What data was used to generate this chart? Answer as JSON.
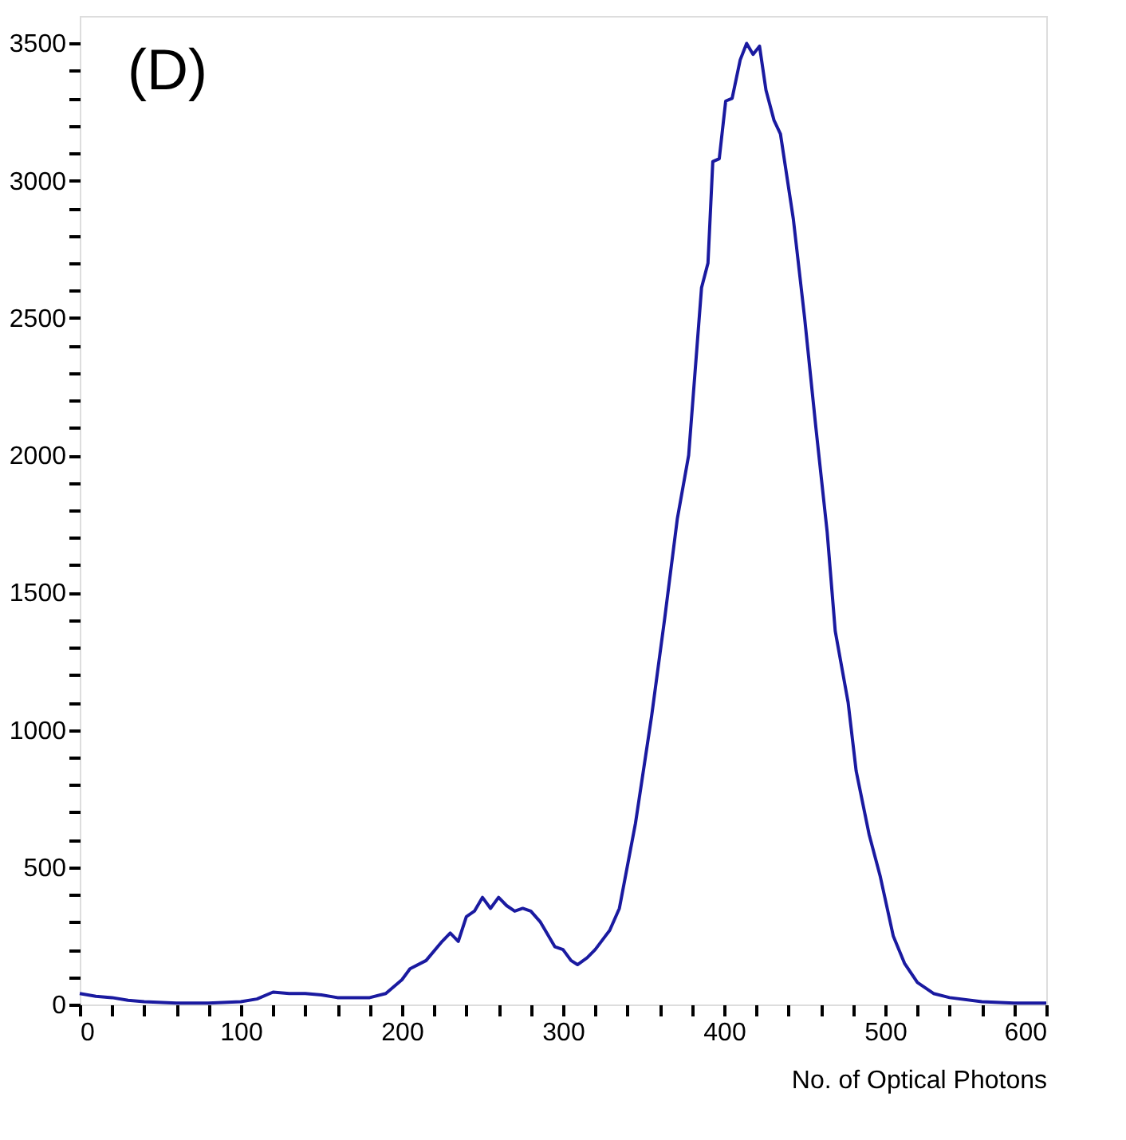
{
  "chart_data": {
    "type": "line",
    "xlabel": "No. of Optical Photons",
    "annotations": [
      "(D)"
    ],
    "xlim": [
      0,
      600
    ],
    "ylim": [
      0,
      3600
    ],
    "xticks": [
      0,
      {
        "value": 20,
        "label": null
      },
      {
        "value": 40,
        "label": null
      },
      {
        "value": 60,
        "label": null
      },
      {
        "value": 80,
        "label": null
      },
      100,
      {
        "value": 120,
        "label": null
      },
      {
        "value": 140,
        "label": null
      },
      {
        "value": 160,
        "label": null
      },
      {
        "value": 180,
        "label": null
      },
      200,
      {
        "value": 220,
        "label": null
      },
      {
        "value": 240,
        "label": null
      },
      {
        "value": 260,
        "label": null
      },
      {
        "value": 280,
        "label": null
      },
      300,
      {
        "value": 320,
        "label": null
      },
      {
        "value": 340,
        "label": null
      },
      {
        "value": 360,
        "label": null
      },
      {
        "value": 380,
        "label": null
      },
      400,
      {
        "value": 420,
        "label": null
      },
      {
        "value": 440,
        "label": null
      },
      {
        "value": 460,
        "label": null
      },
      {
        "value": 480,
        "label": null
      },
      500,
      {
        "value": 520,
        "label": null
      },
      {
        "value": 540,
        "label": null
      },
      {
        "value": 560,
        "label": null
      },
      {
        "value": 580,
        "label": null
      },
      600
    ],
    "yticks": [
      0,
      {
        "value": 100,
        "label": null
      },
      {
        "value": 200,
        "label": null
      },
      {
        "value": 300,
        "label": null
      },
      {
        "value": 400,
        "label": null
      },
      500,
      {
        "value": 600,
        "label": null
      },
      {
        "value": 700,
        "label": null
      },
      {
        "value": 800,
        "label": null
      },
      {
        "value": 900,
        "label": null
      },
      1000,
      {
        "value": 1100,
        "label": null
      },
      {
        "value": 1200,
        "label": null
      },
      {
        "value": 1300,
        "label": null
      },
      {
        "value": 1400,
        "label": null
      },
      1500,
      {
        "value": 1600,
        "label": null
      },
      {
        "value": 1700,
        "label": null
      },
      {
        "value": 1800,
        "label": null
      },
      {
        "value": 1900,
        "label": null
      },
      2000,
      {
        "value": 2100,
        "label": null
      },
      {
        "value": 2200,
        "label": null
      },
      {
        "value": 2300,
        "label": null
      },
      {
        "value": 2400,
        "label": null
      },
      2500,
      {
        "value": 2600,
        "label": null
      },
      {
        "value": 2700,
        "label": null
      },
      {
        "value": 2800,
        "label": null
      },
      {
        "value": 2900,
        "label": null
      },
      3000,
      {
        "value": 3100,
        "label": null
      },
      {
        "value": 3200,
        "label": null
      },
      {
        "value": 3300,
        "label": null
      },
      {
        "value": 3400,
        "label": null
      },
      3500
    ],
    "grid": false,
    "marker": "none",
    "line_style": "solid",
    "series": [
      {
        "color": "#1a1aa0",
        "x": [
          0,
          10,
          20,
          30,
          40,
          60,
          80,
          100,
          110,
          120,
          130,
          140,
          150,
          160,
          180,
          190,
          200,
          205,
          215,
          225,
          230,
          235,
          240,
          245,
          250,
          255,
          260,
          265,
          270,
          275,
          280,
          286,
          290,
          295,
          300,
          305,
          309,
          315,
          320,
          329,
          335,
          345,
          355,
          363,
          371,
          378,
          386,
          390,
          393,
          397,
          401,
          405,
          410,
          414,
          418,
          422,
          426,
          431,
          435,
          443,
          450,
          457,
          464,
          469,
          477,
          482,
          490,
          497,
          505,
          512,
          520,
          530,
          540,
          560,
          580,
          600
        ],
        "values": [
          40,
          30,
          25,
          15,
          10,
          5,
          5,
          10,
          20,
          45,
          40,
          40,
          35,
          25,
          25,
          40,
          90,
          130,
          160,
          230,
          260,
          230,
          320,
          340,
          390,
          350,
          390,
          360,
          340,
          350,
          340,
          300,
          260,
          210,
          200,
          160,
          145,
          170,
          200,
          270,
          350,
          660,
          1050,
          1400,
          1770,
          2000,
          2610,
          2700,
          3070,
          3080,
          3290,
          3300,
          3440,
          3500,
          3460,
          3490,
          3330,
          3220,
          3170,
          2860,
          2500,
          2100,
          1720,
          1360,
          1100,
          850,
          620,
          465,
          250,
          150,
          80,
          40,
          25,
          10,
          5,
          5
        ]
      }
    ]
  }
}
